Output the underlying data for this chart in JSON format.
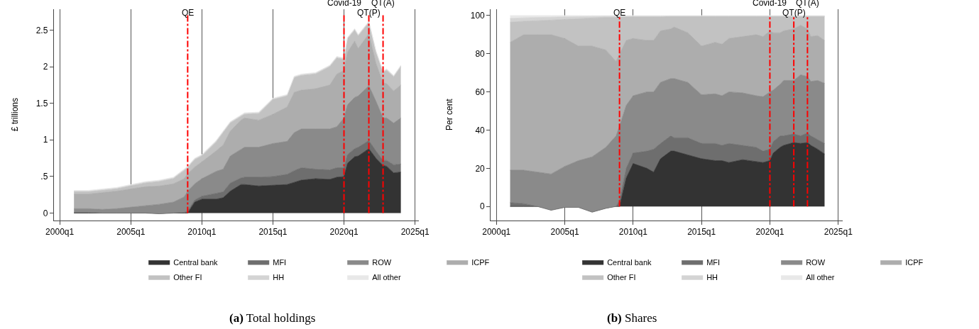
{
  "chart_data": [
    {
      "type": "area",
      "stacked": true,
      "title": "(a) Total holdings",
      "ylabel": "£ trillions",
      "x": [
        "2001-01",
        "2002-01",
        "2003-01",
        "2004-01",
        "2005-01",
        "2006-01",
        "2007-01",
        "2008-01",
        "2008-10",
        "2009-01",
        "2009-07",
        "2010-01",
        "2011-01",
        "2011-07",
        "2012-01",
        "2012-10",
        "2013-01",
        "2014-01",
        "2015-01",
        "2016-01",
        "2016-07",
        "2017-01",
        "2018-01",
        "2019-01",
        "2019-07",
        "2020-01",
        "2020-04",
        "2020-10",
        "2021-01",
        "2021-10",
        "2022-04",
        "2022-10",
        "2023-01",
        "2023-07",
        "2024-01"
      ],
      "series": [
        {
          "name": "Central bank",
          "color": "#333333",
          "values": [
            0,
            0,
            0,
            0,
            0,
            0,
            0,
            0,
            0,
            0,
            0.15,
            0.19,
            0.19,
            0.21,
            0.3,
            0.39,
            0.39,
            0.37,
            0.38,
            0.39,
            0.42,
            0.45,
            0.47,
            0.46,
            0.49,
            0.5,
            0.68,
            0.77,
            0.78,
            0.88,
            0.75,
            0.65,
            0.64,
            0.55,
            0.56
          ]
        },
        {
          "name": "MFI",
          "color": "#6e6e6e",
          "values": [
            0.01,
            0.01,
            0,
            0,
            0,
            0,
            -0.01,
            0,
            0.01,
            0.03,
            0.03,
            0.04,
            0.08,
            0.08,
            0.11,
            0.09,
            0.1,
            0.12,
            0.12,
            0.14,
            0.16,
            0.17,
            0.13,
            0.13,
            0.13,
            0.12,
            0.12,
            0.11,
            0.12,
            0.11,
            0.1,
            0.07,
            0.08,
            0.11,
            0.11
          ]
        },
        {
          "name": "ROW",
          "color": "#8a8a8a",
          "values": [
            0.05,
            0.05,
            0.05,
            0.06,
            0.08,
            0.1,
            0.13,
            0.15,
            0.21,
            0.27,
            0.22,
            0.24,
            0.3,
            0.31,
            0.37,
            0.39,
            0.41,
            0.41,
            0.45,
            0.45,
            0.52,
            0.53,
            0.55,
            0.56,
            0.56,
            0.68,
            0.68,
            0.7,
            0.7,
            0.75,
            0.68,
            0.58,
            0.58,
            0.57,
            0.63
          ]
        },
        {
          "name": "ICPF",
          "color": "#adadad",
          "values": [
            0.2,
            0.2,
            0.23,
            0.24,
            0.25,
            0.26,
            0.25,
            0.25,
            0.25,
            0.24,
            0.23,
            0.23,
            0.28,
            0.33,
            0.34,
            0.4,
            0.4,
            0.37,
            0.4,
            0.47,
            0.55,
            0.53,
            0.55,
            0.6,
            0.72,
            0.65,
            0.72,
            0.77,
            0.65,
            0.71,
            0.52,
            0.48,
            0.47,
            0.44,
            0.45
          ]
        },
        {
          "name": "Other FI",
          "color": "#c2c2c2",
          "values": [
            0.03,
            0.03,
            0.03,
            0.03,
            0.04,
            0.05,
            0.06,
            0.07,
            0.11,
            0.08,
            0.1,
            0.08,
            0.12,
            0.17,
            0.11,
            0.05,
            0.05,
            0.09,
            0.2,
            0.15,
            0.2,
            0.2,
            0.2,
            0.25,
            0.22,
            0.15,
            0.18,
            0.15,
            0.17,
            0.15,
            0.15,
            0.14,
            0.18,
            0.19,
            0.25
          ]
        },
        {
          "name": "HH",
          "color": "#d4d4d4",
          "values": [
            0.01,
            0.01,
            0.01,
            0.01,
            0.01,
            0.01,
            0.01,
            0.01,
            0.01,
            0.01,
            0.01,
            0.01,
            0.01,
            0.01,
            0.01,
            0.01,
            0.01,
            0.01,
            0.01,
            0.01,
            0.01,
            0.01,
            0.01,
            0.01,
            0.01,
            0.01,
            0.01,
            0.01,
            0.01,
            0.01,
            0.01,
            0.01,
            0.01,
            0.01,
            0.01
          ]
        },
        {
          "name": "All other",
          "color": "#e8e8e8",
          "values": [
            0.01,
            0.01,
            0.01,
            0.01,
            0.01,
            0.01,
            0.01,
            0.01,
            0.01,
            0.01,
            0.01,
            0.01,
            0.01,
            0.01,
            0.01,
            0.01,
            0.01,
            0.01,
            0.01,
            0.01,
            0.01,
            0.01,
            0.01,
            0.01,
            0.01,
            0.01,
            0.01,
            0.01,
            0.01,
            0.01,
            0.01,
            0.01,
            0.01,
            0.01,
            0.01
          ]
        }
      ],
      "xlim": [
        "1999-08",
        "2025-04"
      ],
      "xticks": [
        {
          "value": "2000-01",
          "label": "2000q1"
        },
        {
          "value": "2005-01",
          "label": "2005q1"
        },
        {
          "value": "2010-01",
          "label": "2010q1"
        },
        {
          "value": "2015-01",
          "label": "2015q1"
        },
        {
          "value": "2020-01",
          "label": "2020q1"
        },
        {
          "value": "2025-01",
          "label": "2025q1"
        }
      ],
      "ylim": [
        -0.1,
        2.79
      ],
      "yticks": [
        0,
        {
          "value": 0.5,
          "label": ".5"
        },
        1,
        1.5,
        2,
        2.5
      ],
      "ref_lines": [
        {
          "axis": "x",
          "value": "2009-01",
          "label": "QE",
          "color": "#ff0000",
          "line_style": "dashdot"
        },
        {
          "axis": "x",
          "value": "2020-01",
          "label": "Covid-19",
          "color": "#ff0000",
          "line_style": "dashdot"
        },
        {
          "axis": "x",
          "value": "2021-10",
          "label": "QT(P)",
          "color": "#ff0000",
          "line_style": "dashdot"
        },
        {
          "axis": "x",
          "value": "2022-10",
          "label": "QT(A)",
          "color": "#ff0000",
          "line_style": "dashdot"
        }
      ],
      "grid": "x",
      "legend": "bottom"
    },
    {
      "type": "area",
      "stacked": true,
      "title": "(b) Shares",
      "ylabel": "Per cent",
      "x": [
        "2001-01",
        "2002-01",
        "2003-01",
        "2004-01",
        "2005-01",
        "2006-01",
        "2007-01",
        "2008-01",
        "2008-10",
        "2009-01",
        "2009-07",
        "2010-01",
        "2011-01",
        "2011-07",
        "2012-01",
        "2012-10",
        "2013-01",
        "2014-01",
        "2015-01",
        "2016-01",
        "2016-07",
        "2017-01",
        "2018-01",
        "2019-01",
        "2019-07",
        "2020-01",
        "2020-04",
        "2020-10",
        "2021-01",
        "2021-10",
        "2022-04",
        "2022-10",
        "2023-01",
        "2023-07",
        "2024-01"
      ],
      "series": [
        {
          "name": "Central bank",
          "color": "#333333",
          "values": [
            0,
            0,
            0,
            0,
            0,
            0,
            0,
            0,
            0,
            0,
            15,
            22.5,
            20,
            18,
            25,
            29,
            29,
            27,
            25,
            24,
            24,
            23,
            24.5,
            23.5,
            23,
            24,
            28,
            31,
            32,
            33.5,
            33,
            33.5,
            32,
            30,
            27.5
          ]
        },
        {
          "name": "MFI",
          "color": "#6e6e6e",
          "values": [
            2,
            1.5,
            0,
            -2,
            -0.5,
            -0.5,
            -3,
            -1,
            0,
            3,
            5,
            5.5,
            9,
            12,
            8,
            8,
            7,
            9,
            8,
            9,
            8,
            10,
            7.5,
            7.5,
            6,
            6,
            6,
            6,
            5,
            4.5,
            4,
            5,
            5,
            5,
            5.5
          ]
        },
        {
          "name": "ROW",
          "color": "#8a8a8a",
          "values": [
            17,
            17.5,
            18,
            19,
            21.5,
            24.5,
            29,
            32,
            37,
            39,
            33,
            30,
            31,
            30,
            32,
            30,
            31,
            29,
            25.5,
            26,
            26,
            27,
            27.5,
            27,
            28.5,
            30,
            27,
            27,
            29,
            28,
            32,
            29.5,
            28.5,
            31,
            31.5
          ]
        },
        {
          "name": "ICPF",
          "color": "#adadad",
          "values": [
            67,
            71,
            72,
            73,
            67,
            60,
            58,
            51,
            39,
            38,
            34,
            30,
            27,
            27,
            27,
            26,
            27,
            26,
            25.5,
            27,
            27,
            28,
            29.5,
            32,
            31.5,
            32,
            30,
            27,
            26,
            27,
            26,
            25,
            23.5,
            23.5,
            22.5
          ]
        },
        {
          "name": "Other FI",
          "color": "#c2c2c2",
          "values": [
            10.5,
            7,
            7.3,
            7.6,
            10,
            14.3,
            14.7,
            17,
            23,
            19.3,
            12.3,
            11.3,
            12.3,
            12.3,
            7.3,
            6.5,
            5.5,
            8.5,
            15.5,
            13.5,
            14.5,
            11.5,
            10.5,
            9.5,
            10.5,
            7.5,
            8.5,
            8.5,
            7.5,
            6.5,
            4.5,
            6.5,
            10.5,
            10,
            12.5
          ]
        },
        {
          "name": "HH",
          "color": "#d4d4d4",
          "values": [
            2,
            1.8,
            1.7,
            1.5,
            1.3,
            1.1,
            0.8,
            0.6,
            0.6,
            0.4,
            0.4,
            0.4,
            0.4,
            0.4,
            0.4,
            0.3,
            0.3,
            0.3,
            0.3,
            0.3,
            0.3,
            0.3,
            0.3,
            0.3,
            0.3,
            0.3,
            0.3,
            0.3,
            0.3,
            0.3,
            0.3,
            0.3,
            0.3,
            0.3,
            0.3
          ]
        },
        {
          "name": "All other",
          "color": "#e8e8e8",
          "values": [
            1.5,
            1.2,
            1,
            0.9,
            0.7,
            0.6,
            0.5,
            0.4,
            0.4,
            0.3,
            0.3,
            0.3,
            0.3,
            0.3,
            0.3,
            0.2,
            0.2,
            0.2,
            0.2,
            0.2,
            0.2,
            0.2,
            0.2,
            0.2,
            0.2,
            0.2,
            0.2,
            0.2,
            0.2,
            0.2,
            0.2,
            0.2,
            0.2,
            0.2,
            0.2
          ]
        }
      ],
      "xlim": [
        "1999-08",
        "2025-05"
      ],
      "xticks": [
        {
          "value": "2000-01",
          "label": "2000q1"
        },
        {
          "value": "2005-01",
          "label": "2005q1"
        },
        {
          "value": "2010-01",
          "label": "2010q1"
        },
        {
          "value": "2015-01",
          "label": "2015q1"
        },
        {
          "value": "2020-01",
          "label": "2020q1"
        },
        {
          "value": "2025-01",
          "label": "2025q1"
        }
      ],
      "ylim": [
        -7.3,
        103.5
      ],
      "yticks": [
        0,
        20,
        40,
        60,
        80,
        100
      ],
      "ref_lines": [
        {
          "axis": "x",
          "value": "2009-01",
          "label": "QE",
          "color": "#ff0000",
          "line_style": "dashdot"
        },
        {
          "axis": "x",
          "value": "2020-01",
          "label": "Covid-19",
          "color": "#ff0000",
          "line_style": "dashdot"
        },
        {
          "axis": "x",
          "value": "2021-10",
          "label": "QT(P)",
          "color": "#ff0000",
          "line_style": "dashdot"
        },
        {
          "axis": "x",
          "value": "2022-10",
          "label": "QT(A)",
          "color": "#ff0000",
          "line_style": "dashdot"
        }
      ],
      "grid": "x",
      "legend": "bottom"
    }
  ]
}
